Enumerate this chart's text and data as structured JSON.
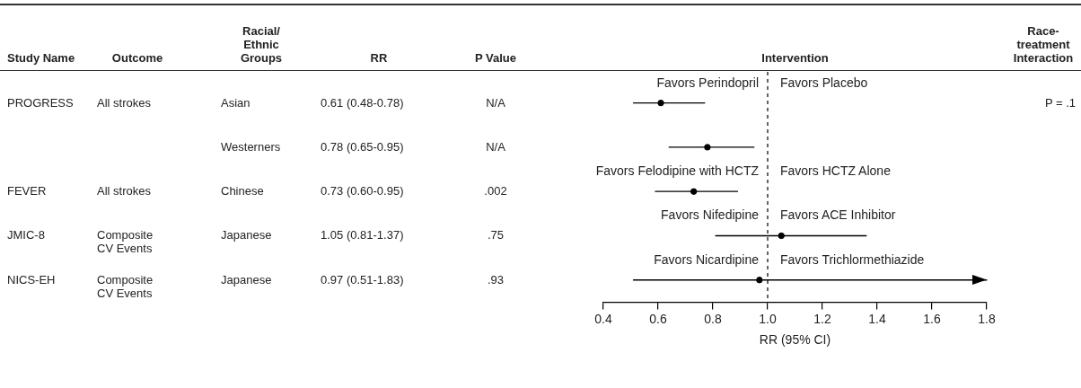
{
  "chart_data": {
    "type": "scatter",
    "orientation": "horizontal",
    "title": "Intervention",
    "xlabel": "RR (95% CI)",
    "categories": [
      null,
      null,
      null,
      null,
      null
    ],
    "values": [
      0.61,
      0.78,
      0.73,
      1.05,
      0.97
    ],
    "errors": [
      [
        0.51,
        0.77
      ],
      [
        0.64,
        0.95
      ],
      [
        0.59,
        0.89
      ],
      [
        0.81,
        1.36
      ],
      [
        0.51,
        1.8
      ]
    ],
    "color": "#000000",
    "marker": "circle",
    "legend": false,
    "grid": false,
    "xlim": [
      0.4,
      1.8
    ],
    "xticks": [
      {
        "value": 0.4,
        "label": "0.4"
      },
      {
        "value": 0.6,
        "label": "0.6"
      },
      {
        "value": 0.8,
        "label": "0.8"
      },
      {
        "value": 1,
        "label": "1.0"
      },
      {
        "value": 1.2,
        "label": "1.2"
      },
      {
        "value": 1.4,
        "label": "1.4"
      },
      {
        "value": 1.6,
        "label": "1.6"
      },
      {
        "value": 1.8,
        "label": "1.8"
      }
    ],
    "ref_lines": [
      {
        "axis": "x",
        "value": 1,
        "line_style": "dashed",
        "color": "#000000"
      }
    ],
    "annotations": [
      "Study Name",
      "Outcome",
      "Racial/ Ethnic Groups",
      "RR",
      "P Value",
      "Race-treatment Interaction",
      "PROGRESS",
      "All strokes",
      "Asian",
      "0.61 (0.48-0.78)",
      "N/A",
      "P = .1",
      "Westerners",
      "0.78 (0.65-0.95)",
      "N/A",
      "FEVER",
      "All strokes",
      "Chinese",
      "0.73 (0.60-0.95)",
      ".002",
      "JMIC-8",
      "Composite CV Events",
      "Japanese",
      "1.05 (0.81-1.37)",
      ".75",
      "NICS-EH",
      "Composite CV Events",
      "Japanese",
      "0.97 (0.51-1.83)",
      ".93",
      "Favors Perindopril",
      "Favors Placebo",
      "Favors Felodipine with HCTZ",
      "Favors HCTZ Alone",
      "Favors Nifedipine",
      "Favors ACE Inhibitor",
      "Favors Nicardipine",
      "Favors Trichlormethiazide"
    ]
  }
}
